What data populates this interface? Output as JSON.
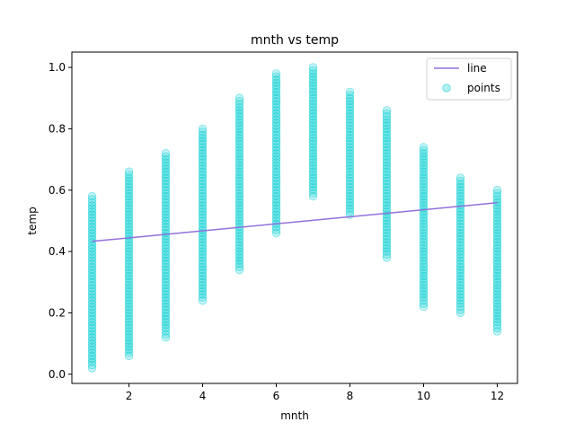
{
  "chart_data": {
    "type": "scatter",
    "title": "mnth vs temp",
    "xlabel": "mnth",
    "ylabel": "temp",
    "xlim": [
      0.45,
      12.55
    ],
    "ylim": [
      -0.03,
      1.05
    ],
    "xticks": [
      2,
      4,
      6,
      8,
      10,
      12
    ],
    "yticks": [
      0.0,
      0.2,
      0.4,
      0.6,
      0.8,
      1.0
    ],
    "legend": {
      "placement": "top-right",
      "entries": [
        "line",
        "points"
      ]
    },
    "grid": false,
    "colors": {
      "points": "#00ced1",
      "line": "#9370db"
    },
    "series": [
      {
        "name": "points",
        "kind": "scatter",
        "ranges": [
          {
            "x": 1,
            "min": 0.02,
            "max": 0.58
          },
          {
            "x": 2,
            "min": 0.06,
            "max": 0.66
          },
          {
            "x": 3,
            "min": 0.12,
            "max": 0.72
          },
          {
            "x": 4,
            "min": 0.24,
            "max": 0.8
          },
          {
            "x": 5,
            "min": 0.34,
            "max": 0.9
          },
          {
            "x": 6,
            "min": 0.46,
            "max": 0.98
          },
          {
            "x": 7,
            "min": 0.58,
            "max": 1.0
          },
          {
            "x": 8,
            "min": 0.52,
            "max": 0.92
          },
          {
            "x": 9,
            "min": 0.38,
            "max": 0.86
          },
          {
            "x": 10,
            "min": 0.22,
            "max": 0.74
          },
          {
            "x": 11,
            "min": 0.2,
            "max": 0.64
          },
          {
            "x": 12,
            "min": 0.14,
            "max": 0.6
          }
        ]
      },
      {
        "name": "line",
        "kind": "line",
        "x": [
          1,
          12
        ],
        "y": [
          0.433,
          0.559
        ]
      }
    ]
  }
}
